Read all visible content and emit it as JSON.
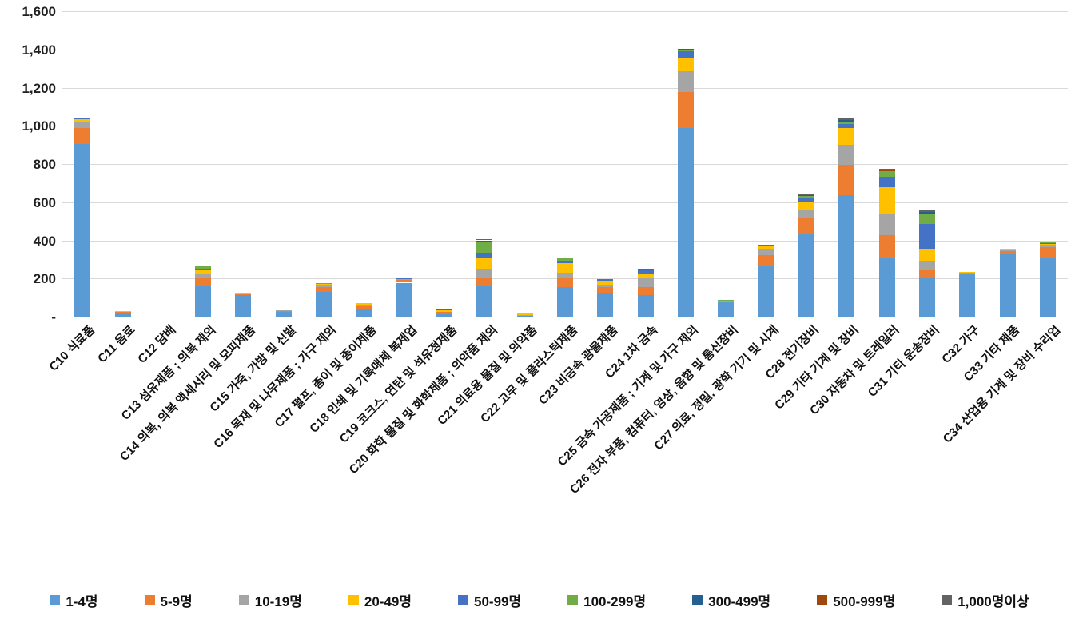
{
  "chart_data": {
    "type": "bar",
    "stacked": true,
    "title": "",
    "xlabel": "",
    "ylabel": "",
    "grid": true,
    "legend_position": "bottom",
    "y_axis": {
      "min": 0,
      "max": 1600,
      "step": 200,
      "tick_labels_top_to_bottom": [
        "1,600",
        "1,400",
        "1,200",
        "1,000",
        "800",
        "600",
        "400",
        "200",
        "-"
      ]
    },
    "categories": [
      "C10 식료품",
      "C11 음료",
      "C12 담배",
      "C13 섬유제품 ; 의복 제외",
      "C14 의복, 의복 액세서리 및 모피제품",
      "C15 가죽, 가방 및 신발",
      "C16 목재 및 나무제품 ; 가구 제외",
      "C17 펄프, 종이 및 종이제품",
      "C18 인쇄 및 기록매체 복제업",
      "C19 코크스, 연탄 및 석유정제품",
      "C20 화학 물질 및 화학제품 ; 의약품 제외",
      "C21 의료용 물질 및 의약품",
      "C22 고무 및 플라스틱제품",
      "C23 비금속 광물제품",
      "C24 1차 금속",
      "C25 금속 가공제품 ; 기계 및 가구 제외",
      "C26 전자 부품, 컴퓨터, 영상, 음향 및 통신장비",
      "C27 의료, 정밀, 광학 기기 및 시계",
      "C28 전기장비",
      "C29 기타 기계 및 장비",
      "C30 자동차 및 트레일러",
      "C31 기타 운송장비",
      "C32 가구",
      "C33 기타 제품",
      "C34 산업용 기계 및 장비 수리업"
    ],
    "series": [
      {
        "name": "1-4명",
        "color": "#5B9BD5",
        "values": [
          905,
          20,
          1,
          164,
          113,
          27,
          130,
          43,
          178,
          12,
          165,
          5,
          155,
          125,
          115,
          990,
          75,
          265,
          430,
          637,
          305,
          203,
          222,
          325,
          310
        ]
      },
      {
        "name": "5-9명",
        "color": "#ED7D31",
        "values": [
          82,
          5,
          0,
          42,
          7,
          4,
          23,
          12,
          15,
          12,
          41,
          2,
          50,
          30,
          42,
          187,
          5,
          59,
          88,
          160,
          124,
          45,
          6,
          18,
          55
        ]
      },
      {
        "name": "10-19명",
        "color": "#A5A5A5",
        "values": [
          33,
          3,
          0,
          20,
          4,
          3,
          13,
          7,
          2,
          0,
          44,
          3,
          25,
          13,
          42,
          110,
          5,
          30,
          45,
          105,
          111,
          44,
          3,
          8,
          10
        ]
      },
      {
        "name": "20-49명",
        "color": "#FFC000",
        "values": [
          13,
          3,
          1,
          18,
          2,
          3,
          8,
          8,
          0,
          12,
          60,
          6,
          50,
          22,
          24,
          66,
          2,
          16,
          42,
          86,
          139,
          64,
          2,
          5,
          8
        ]
      },
      {
        "name": "50-99명",
        "color": "#4472C4",
        "values": [
          4,
          0,
          0,
          8,
          0,
          0,
          0,
          0,
          4,
          0,
          25,
          0,
          15,
          8,
          18,
          37,
          0,
          6,
          15,
          22,
          56,
          128,
          0,
          0,
          4
        ]
      },
      {
        "name": "100-299명",
        "color": "#70AD47",
        "values": [
          5,
          0,
          0,
          10,
          0,
          0,
          4,
          0,
          0,
          0,
          59,
          0,
          10,
          0,
          0,
          10,
          3,
          0,
          12,
          14,
          28,
          56,
          0,
          0,
          4
        ]
      },
      {
        "name": "300-499명",
        "color": "#255E91",
        "values": [
          0,
          0,
          0,
          0,
          0,
          0,
          0,
          0,
          0,
          0,
          6,
          0,
          0,
          0,
          0,
          4,
          0,
          0,
          4,
          5,
          0,
          10,
          0,
          0,
          0
        ]
      },
      {
        "name": "500-999명",
        "color": "#9E480E",
        "values": [
          0,
          0,
          0,
          0,
          0,
          0,
          0,
          0,
          0,
          0,
          0,
          0,
          0,
          0,
          8,
          0,
          0,
          0,
          0,
          0,
          5,
          0,
          0,
          0,
          0
        ]
      },
      {
        "name": "1,000명이상",
        "color": "#636363",
        "values": [
          0,
          0,
          0,
          0,
          0,
          0,
          0,
          0,
          0,
          8,
          8,
          0,
          0,
          0,
          4,
          0,
          0,
          0,
          4,
          8,
          5,
          8,
          0,
          0,
          0
        ]
      }
    ]
  },
  "style_colors": {
    "gridline": "#d9d9d9",
    "axis_line": "#bfbfbf",
    "tick_text": "#1f1f1f",
    "label_text": "#111111"
  }
}
